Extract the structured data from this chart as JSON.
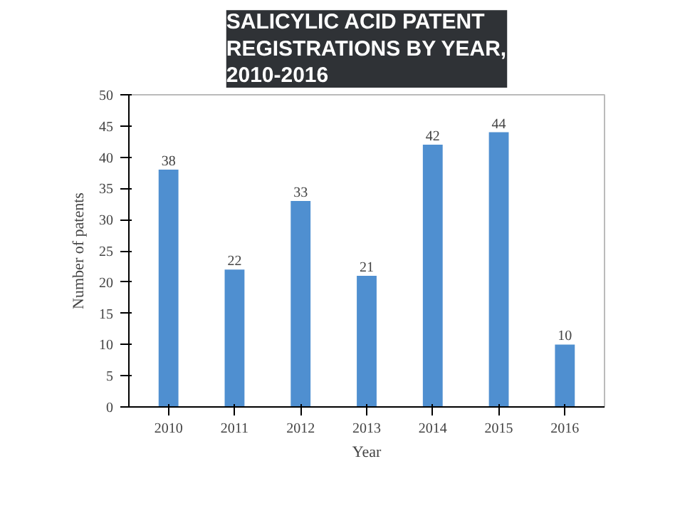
{
  "chart_data": {
    "type": "bar",
    "title": "SALICYLIC ACID PATENT\nREGISTRATIONS BY YEAR,\n2010-2016",
    "xlabel": "Year",
    "ylabel": "Number of patents",
    "categories": [
      "2010",
      "2011",
      "2012",
      "2013",
      "2014",
      "2015",
      "2016"
    ],
    "values": [
      38,
      22,
      33,
      21,
      42,
      44,
      10
    ],
    "color": "#4f8fd0",
    "ylim": [
      0,
      50
    ],
    "yticks": [
      0,
      5,
      10,
      15,
      20,
      25,
      30,
      35,
      40,
      45,
      50
    ],
    "grid": false,
    "data_labels": true
  }
}
